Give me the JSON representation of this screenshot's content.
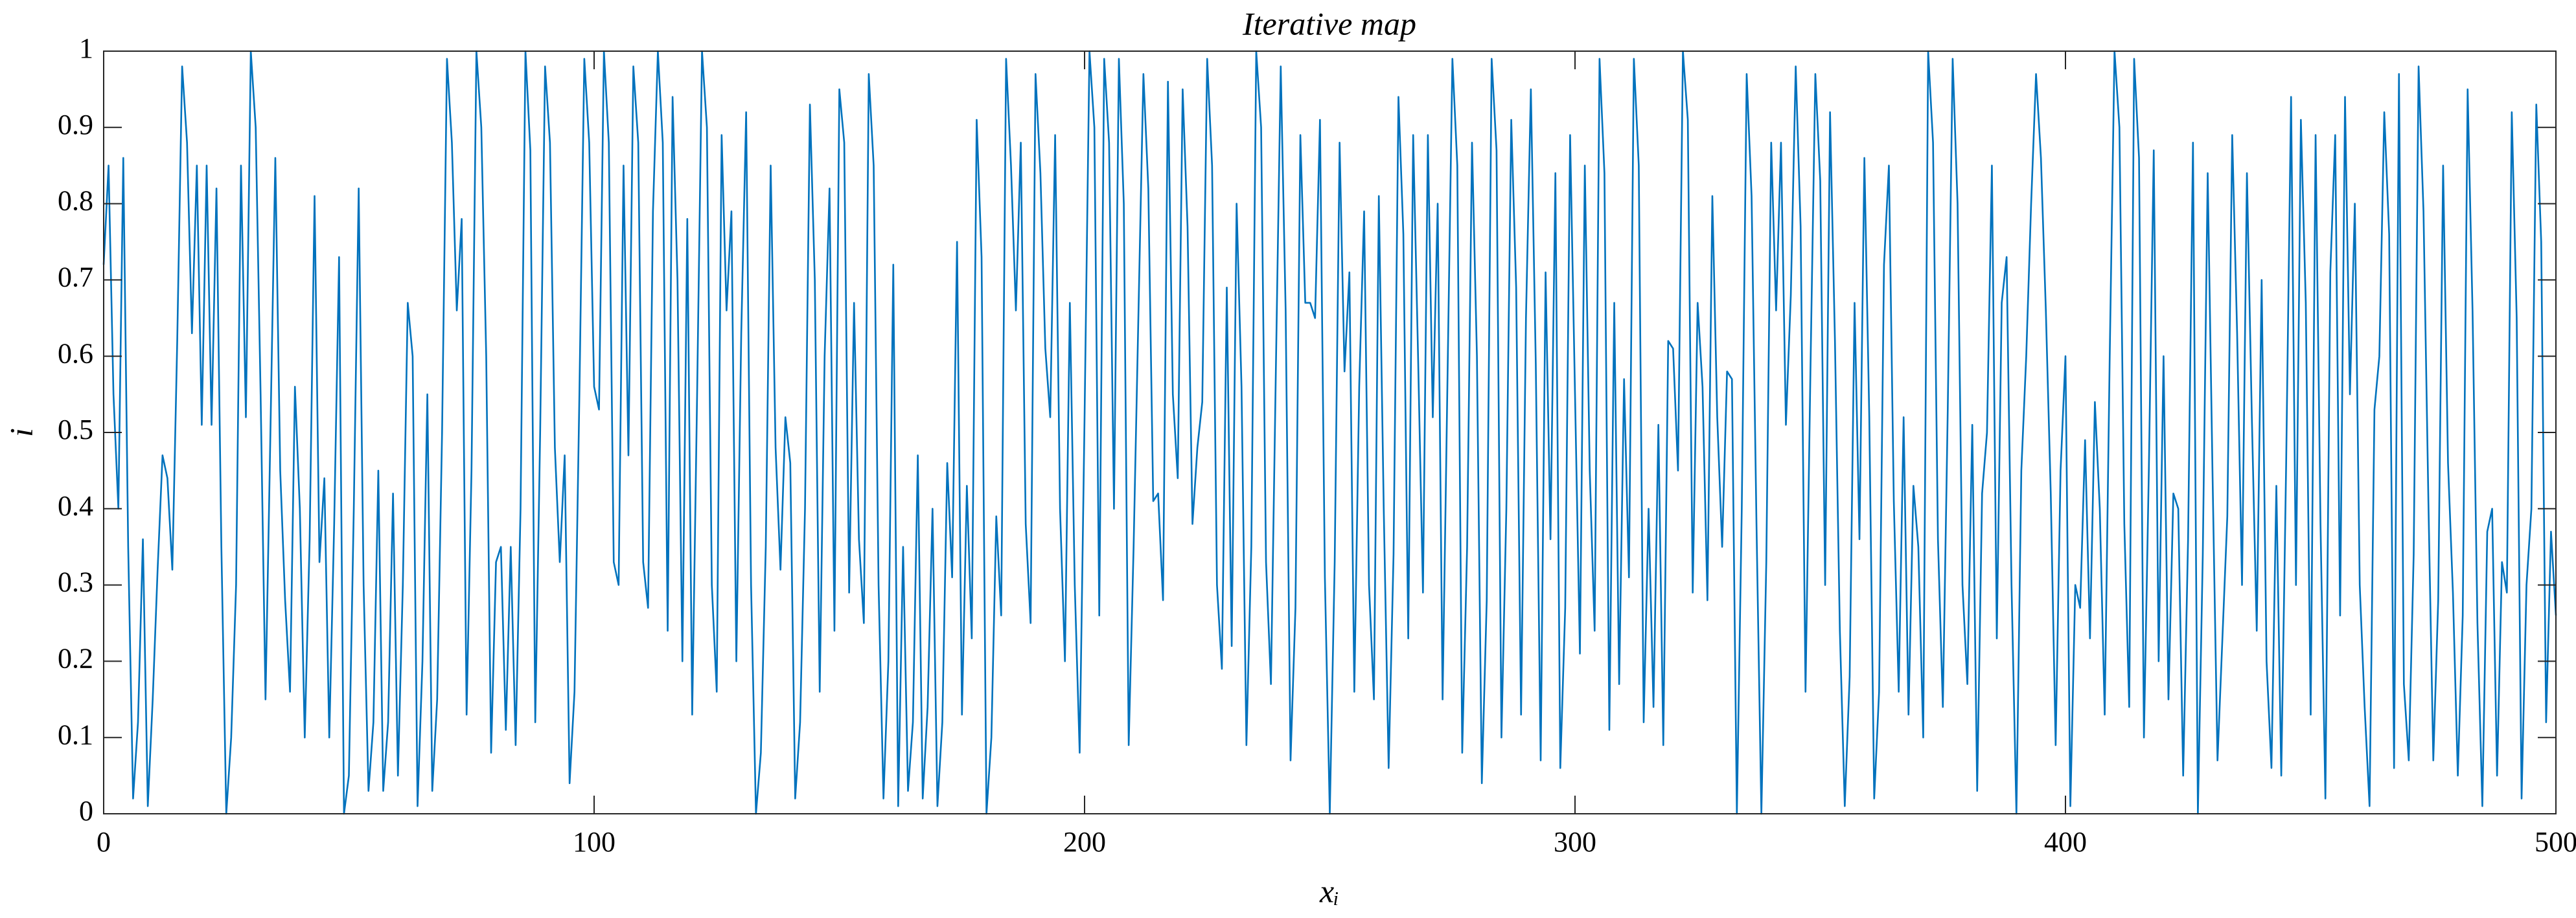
{
  "chart_data": {
    "type": "line",
    "title": "Iterative map",
    "xlabel": "xᵢ",
    "ylabel": "i",
    "xlim": [
      0,
      500
    ],
    "ylim": [
      0,
      1
    ],
    "xticks": [
      0,
      100,
      200,
      300,
      400,
      500
    ],
    "yticks": [
      0,
      0.1,
      0.2,
      0.3,
      0.4,
      0.5,
      0.6,
      0.7,
      0.8,
      0.9,
      1
    ],
    "grid": false,
    "x": [
      0,
      1,
      2,
      3,
      4,
      5,
      6,
      7,
      8,
      9,
      10,
      11,
      12,
      13,
      14,
      15,
      16,
      17,
      18,
      19,
      20,
      21,
      22,
      23,
      24,
      25,
      26,
      27,
      28,
      29,
      30,
      31,
      32,
      33,
      34,
      35,
      36,
      37,
      38,
      39,
      40,
      41,
      42,
      43,
      44,
      45,
      46,
      47,
      48,
      49,
      50,
      51,
      52,
      53,
      54,
      55,
      56,
      57,
      58,
      59,
      60,
      61,
      62,
      63,
      64,
      65,
      66,
      67,
      68,
      69,
      70,
      71,
      72,
      73,
      74,
      75,
      76,
      77,
      78,
      79,
      80,
      81,
      82,
      83,
      84,
      85,
      86,
      87,
      88,
      89,
      90,
      91,
      92,
      93,
      94,
      95,
      96,
      97,
      98,
      99,
      100,
      101,
      102,
      103,
      104,
      105,
      106,
      107,
      108,
      109,
      110,
      111,
      112,
      113,
      114,
      115,
      116,
      117,
      118,
      119,
      120,
      121,
      122,
      123,
      124,
      125,
      126,
      127,
      128,
      129,
      130,
      131,
      132,
      133,
      134,
      135,
      136,
      137,
      138,
      139,
      140,
      141,
      142,
      143,
      144,
      145,
      146,
      147,
      148,
      149,
      150,
      151,
      152,
      153,
      154,
      155,
      156,
      157,
      158,
      159,
      160,
      161,
      162,
      163,
      164,
      165,
      166,
      167,
      168,
      169,
      170,
      171,
      172,
      173,
      174,
      175,
      176,
      177,
      178,
      179,
      180,
      181,
      182,
      183,
      184,
      185,
      186,
      187,
      188,
      189,
      190,
      191,
      192,
      193,
      194,
      195,
      196,
      197,
      198,
      199,
      200,
      201,
      202,
      203,
      204,
      205,
      206,
      207,
      208,
      209,
      210,
      211,
      212,
      213,
      214,
      215,
      216,
      217,
      218,
      219,
      220,
      221,
      222,
      223,
      224,
      225,
      226,
      227,
      228,
      229,
      230,
      231,
      232,
      233,
      234,
      235,
      236,
      237,
      238,
      239,
      240,
      241,
      242,
      243,
      244,
      245,
      246,
      247,
      248,
      249,
      250,
      251,
      252,
      253,
      254,
      255,
      256,
      257,
      258,
      259,
      260,
      261,
      262,
      263,
      264,
      265,
      266,
      267,
      268,
      269,
      270,
      271,
      272,
      273,
      274,
      275,
      276,
      277,
      278,
      279,
      280,
      281,
      282,
      283,
      284,
      285,
      286,
      287,
      288,
      289,
      290,
      291,
      292,
      293,
      294,
      295,
      296,
      297,
      298,
      299,
      300,
      301,
      302,
      303,
      304,
      305,
      306,
      307,
      308,
      309,
      310,
      311,
      312,
      313,
      314,
      315,
      316,
      317,
      318,
      319,
      320,
      321,
      322,
      323,
      324,
      325,
      326,
      327,
      328,
      329,
      330,
      331,
      332,
      333,
      334,
      335,
      336,
      337,
      338,
      339,
      340,
      341,
      342,
      343,
      344,
      345,
      346,
      347,
      348,
      349,
      350,
      351,
      352,
      353,
      354,
      355,
      356,
      357,
      358,
      359,
      360,
      361,
      362,
      363,
      364,
      365,
      366,
      367,
      368,
      369,
      370,
      371,
      372,
      373,
      374,
      375,
      376,
      377,
      378,
      379,
      380,
      381,
      382,
      383,
      384,
      385,
      386,
      387,
      388,
      389,
      390,
      391,
      392,
      393,
      394,
      395,
      396,
      397,
      398,
      399,
      400,
      401,
      402,
      403,
      404,
      405,
      406,
      407,
      408,
      409,
      410,
      411,
      412,
      413,
      414,
      415,
      416,
      417,
      418,
      419,
      420,
      421,
      422,
      423,
      424,
      425,
      426,
      427,
      428,
      429,
      430,
      431,
      432,
      433,
      434,
      435,
      436,
      437,
      438,
      439,
      440,
      441,
      442,
      443,
      444,
      445,
      446,
      447,
      448,
      449,
      450,
      451,
      452,
      453,
      454,
      455,
      456,
      457,
      458,
      459,
      460,
      461,
      462,
      463,
      464,
      465,
      466,
      467,
      468,
      469,
      470,
      471,
      472,
      473,
      474,
      475,
      476,
      477,
      478,
      479,
      480,
      481,
      482,
      483,
      484,
      485,
      486,
      487,
      488,
      489,
      490,
      491,
      492,
      493,
      494,
      495,
      496,
      497,
      498,
      499,
      500
    ],
    "series": [
      {
        "color": "#0072bd",
        "values": [
          0.72,
          0.85,
          0.55,
          0.4,
          0.86,
          0.35,
          0.02,
          0.12,
          0.36,
          0.01,
          0.15,
          0.32,
          0.47,
          0.44,
          0.32,
          0.62,
          0.98,
          0.88,
          0.63,
          0.85,
          0.51,
          0.85,
          0.51,
          0.82,
          0.35,
          0.0,
          0.1,
          0.3,
          0.85,
          0.52,
          1.0,
          0.9,
          0.55,
          0.15,
          0.5,
          0.86,
          0.45,
          0.28,
          0.16,
          0.56,
          0.4,
          0.1,
          0.36,
          0.81,
          0.33,
          0.44,
          0.1,
          0.38,
          0.73,
          0.0,
          0.05,
          0.4,
          0.82,
          0.3,
          0.03,
          0.12,
          0.45,
          0.03,
          0.12,
          0.42,
          0.05,
          0.3,
          0.67,
          0.6,
          0.01,
          0.2,
          0.55,
          0.03,
          0.15,
          0.5,
          0.99,
          0.88,
          0.66,
          0.78,
          0.13,
          0.45,
          1.0,
          0.9,
          0.6,
          0.08,
          0.33,
          0.35,
          0.11,
          0.35,
          0.09,
          0.4,
          1.0,
          0.87,
          0.12,
          0.5,
          0.98,
          0.88,
          0.48,
          0.33,
          0.47,
          0.04,
          0.16,
          0.55,
          0.99,
          0.88,
          0.56,
          0.53,
          1.0,
          0.88,
          0.33,
          0.3,
          0.85,
          0.47,
          0.98,
          0.88,
          0.33,
          0.27,
          0.79,
          1.0,
          0.88,
          0.24,
          0.94,
          0.7,
          0.2,
          0.78,
          0.13,
          0.55,
          1.0,
          0.9,
          0.3,
          0.16,
          0.89,
          0.66,
          0.79,
          0.2,
          0.63,
          0.92,
          0.3,
          0.0,
          0.08,
          0.35,
          0.85,
          0.48,
          0.32,
          0.52,
          0.46,
          0.02,
          0.12,
          0.4,
          0.93,
          0.7,
          0.16,
          0.6,
          0.82,
          0.24,
          0.95,
          0.88,
          0.29,
          0.67,
          0.36,
          0.25,
          0.97,
          0.85,
          0.3,
          0.02,
          0.2,
          0.72,
          0.01,
          0.35,
          0.03,
          0.12,
          0.47,
          0.02,
          0.14,
          0.4,
          0.01,
          0.12,
          0.46,
          0.31,
          0.75,
          0.13,
          0.43,
          0.23,
          0.91,
          0.73,
          0.0,
          0.1,
          0.39,
          0.26,
          0.99,
          0.85,
          0.66,
          0.88,
          0.38,
          0.25,
          0.97,
          0.84,
          0.61,
          0.52,
          0.89,
          0.4,
          0.2,
          0.67,
          0.3,
          0.08,
          0.52,
          1.0,
          0.9,
          0.26,
          0.99,
          0.88,
          0.4,
          0.99,
          0.8,
          0.09,
          0.35,
          0.66,
          0.97,
          0.82,
          0.41,
          0.42,
          0.28,
          0.96,
          0.55,
          0.44,
          0.95,
          0.77,
          0.38,
          0.48,
          0.54,
          0.99,
          0.85,
          0.3,
          0.19,
          0.69,
          0.22,
          0.8,
          0.56,
          0.09,
          0.35,
          1.0,
          0.9,
          0.33,
          0.17,
          0.58,
          0.98,
          0.66,
          0.07,
          0.27,
          0.89,
          0.67,
          0.67,
          0.65,
          0.91,
          0.31,
          0.0,
          0.33,
          0.88,
          0.58,
          0.71,
          0.16,
          0.56,
          0.79,
          0.3,
          0.15,
          0.81,
          0.4,
          0.06,
          0.34,
          0.94,
          0.76,
          0.23,
          0.89,
          0.6,
          0.29,
          0.89,
          0.52,
          0.8,
          0.15,
          0.57,
          0.99,
          0.85,
          0.08,
          0.35,
          0.88,
          0.6,
          0.04,
          0.28,
          0.99,
          0.87,
          0.1,
          0.4,
          0.91,
          0.69,
          0.13,
          0.65,
          0.95,
          0.59,
          0.07,
          0.71,
          0.36,
          0.84,
          0.06,
          0.27,
          0.89,
          0.55,
          0.21,
          0.85,
          0.45,
          0.24,
          0.99,
          0.84,
          0.11,
          0.67,
          0.17,
          0.57,
          0.31,
          0.99,
          0.85,
          0.12,
          0.4,
          0.14,
          0.51,
          0.09,
          0.62,
          0.61,
          0.45,
          1.0,
          0.91,
          0.29,
          0.67,
          0.56,
          0.28,
          0.81,
          0.52,
          0.35,
          0.58,
          0.57,
          0.0,
          0.4,
          0.97,
          0.81,
          0.38,
          0.0,
          0.33,
          0.88,
          0.66,
          0.88,
          0.51,
          0.68,
          0.98,
          0.77,
          0.16,
          0.58,
          0.97,
          0.83,
          0.3,
          0.92,
          0.62,
          0.24,
          0.01,
          0.18,
          0.67,
          0.36,
          0.86,
          0.52,
          0.02,
          0.16,
          0.72,
          0.85,
          0.41,
          0.16,
          0.52,
          0.13,
          0.43,
          0.35,
          0.1,
          1.0,
          0.88,
          0.36,
          0.14,
          0.53,
          0.99,
          0.8,
          0.3,
          0.17,
          0.51,
          0.03,
          0.42,
          0.5,
          0.85,
          0.23,
          0.67,
          0.73,
          0.3,
          0.0,
          0.45,
          0.6,
          0.8,
          0.97,
          0.86,
          0.66,
          0.42,
          0.09,
          0.45,
          0.6,
          0.01,
          0.3,
          0.27,
          0.49,
          0.23,
          0.54,
          0.4,
          0.13,
          0.59,
          1.0,
          0.9,
          0.38,
          0.14,
          0.99,
          0.86,
          0.1,
          0.45,
          0.87,
          0.2,
          0.6,
          0.15,
          0.42,
          0.4,
          0.05,
          0.36,
          0.88,
          0.0,
          0.34,
          0.84,
          0.44,
          0.07,
          0.23,
          0.39,
          0.89,
          0.63,
          0.3,
          0.84,
          0.52,
          0.24,
          0.7,
          0.2,
          0.06,
          0.43,
          0.05,
          0.46,
          0.94,
          0.3,
          0.91,
          0.67,
          0.13,
          0.89,
          0.38,
          0.02,
          0.71,
          0.89,
          0.26,
          0.94,
          0.55,
          0.8,
          0.3,
          0.14,
          0.01,
          0.53,
          0.6,
          0.92,
          0.76,
          0.06,
          0.97,
          0.17,
          0.07,
          0.34,
          0.98,
          0.79,
          0.41,
          0.07,
          0.28,
          0.85,
          0.46,
          0.29,
          0.05,
          0.26,
          0.95,
          0.66,
          0.25,
          0.01,
          0.37,
          0.4,
          0.05,
          0.33,
          0.29,
          0.92,
          0.65,
          0.02,
          0.3,
          0.4,
          0.93,
          0.75,
          0.12,
          0.37,
          0.26
        ]
      }
    ]
  }
}
